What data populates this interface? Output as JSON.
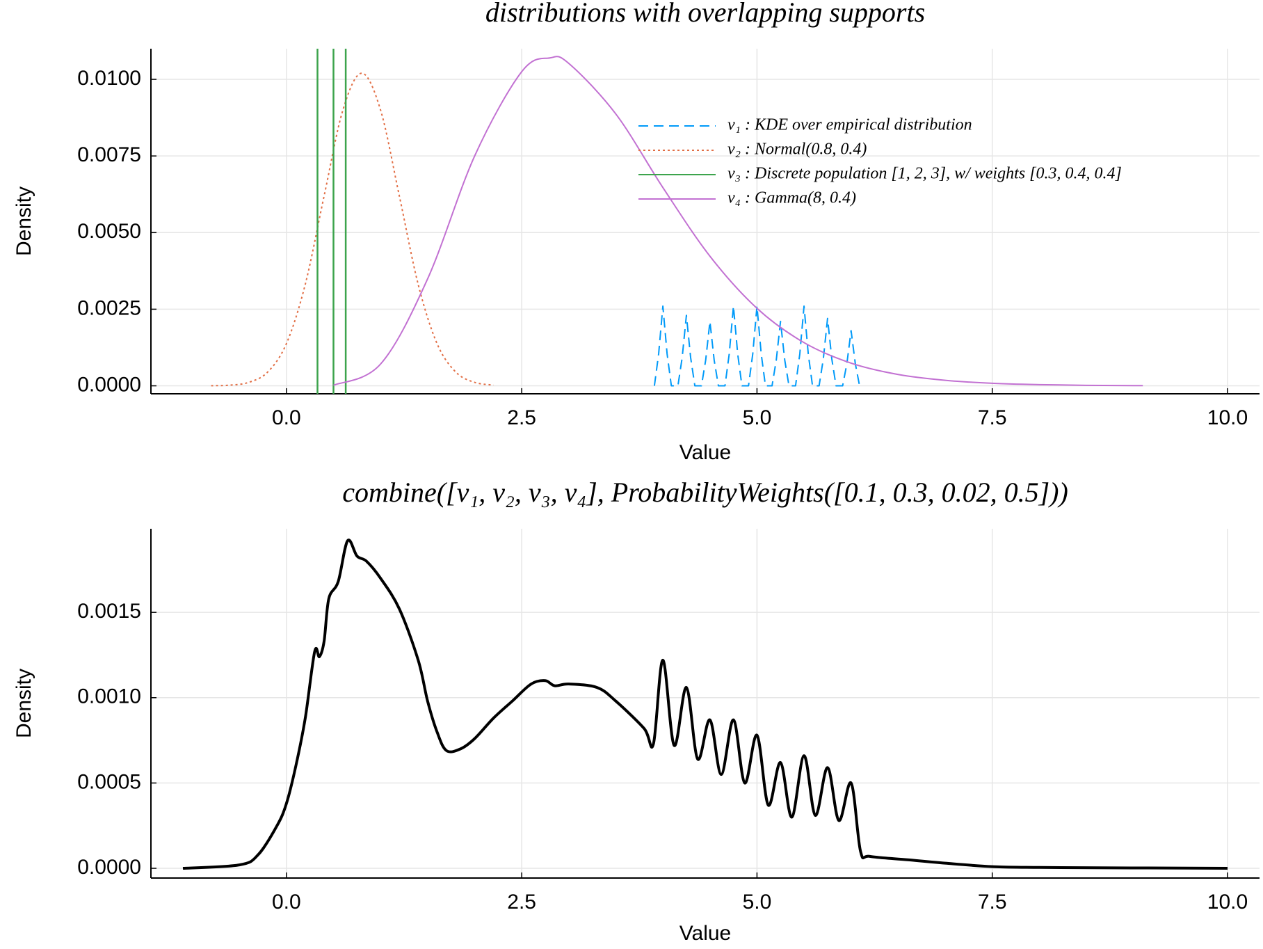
{
  "chart_data": [
    {
      "type": "line",
      "title": "distributions with overlapping supports",
      "xlabel": "Value",
      "ylabel": "Density",
      "xlim": [
        -1.44,
        10.34
      ],
      "ylim": [
        -0.00026,
        0.011
      ],
      "xticks": [
        {
          "value": 0,
          "label": "0.0"
        },
        {
          "value": 2.5,
          "label": "2.5"
        },
        {
          "value": 5,
          "label": "5.0"
        },
        {
          "value": 7.5,
          "label": "7.5"
        },
        {
          "value": 10,
          "label": "10.0"
        }
      ],
      "yticks": [
        {
          "value": 0,
          "label": "0.0000"
        },
        {
          "value": 0.0025,
          "label": "0.0025"
        },
        {
          "value": 0.005,
          "label": "0.0050"
        },
        {
          "value": 0.0075,
          "label": "0.0075"
        },
        {
          "value": 0.01,
          "label": "0.0100"
        }
      ],
      "grid": true,
      "legend": "upper right",
      "series": [
        {
          "name": "v₁ : KDE over empirical distribution",
          "color": "#009af9",
          "style": "dash",
          "x": [
            3.91,
            3.955,
            4.0,
            4.045,
            4.09,
            4.16,
            4.205,
            4.25,
            4.295,
            4.34,
            4.41,
            4.455,
            4.5,
            4.545,
            4.59,
            4.66,
            4.705,
            4.75,
            4.795,
            4.84,
            4.91,
            4.955,
            5.0,
            5.045,
            5.09,
            5.16,
            5.205,
            5.25,
            5.295,
            5.34,
            5.41,
            5.455,
            5.5,
            5.545,
            5.59,
            5.66,
            5.705,
            5.75,
            5.795,
            5.84,
            5.91,
            5.955,
            6.0,
            6.045,
            6.09
          ],
          "values": [
            0,
            0.00104,
            0.0026,
            0.00104,
            0,
            0,
            0.00092,
            0.0023,
            0.00092,
            0,
            0,
            0.00084,
            0.0021,
            0.00084,
            0,
            0,
            0.00104,
            0.0026,
            0.00104,
            0,
            0,
            0.00104,
            0.0026,
            0.00104,
            0,
            0,
            0.00084,
            0.0021,
            0.00084,
            0,
            0,
            0.00104,
            0.0026,
            0.00104,
            0,
            0,
            0.00088,
            0.0022,
            0.00088,
            0,
            0,
            0.00072,
            0.0018,
            0.00072,
            0
          ]
        },
        {
          "name": "v₂ : Normal(0.8, 0.4)",
          "color": "#e26f46",
          "style": "dot",
          "x": [
            -0.8,
            -0.6,
            -0.4,
            -0.2,
            0,
            0.2,
            0.4,
            0.6,
            0.8,
            1.0,
            1.2,
            1.4,
            1.6,
            1.8,
            2.0,
            2.2
          ],
          "values": [
            3.4e-06,
            2.23e-05,
            0.000113,
            0.000448,
            0.00138,
            0.00331,
            0.00619,
            0.009,
            0.0102,
            0.009,
            0.00619,
            0.00331,
            0.00138,
            0.000448,
            0.000113,
            2.23e-05
          ]
        },
        {
          "name": "v₃ : Discrete population [1, 2, 3], w/ weights [0.3, 0.4, 0.4]",
          "color": "#3da44d",
          "style": "vline",
          "x": [
            0.33,
            0.5,
            0.63
          ]
        },
        {
          "name": "v₄ : Gamma(8, 0.4)",
          "color": "#c271d2",
          "style": "solid",
          "x": [
            0.5,
            1.0,
            1.5,
            2.0,
            2.5,
            2.8,
            3.0,
            3.5,
            4.0,
            4.5,
            5.0,
            5.5,
            6.0,
            6.5,
            7.0,
            7.5,
            8.0,
            8.5,
            9.0,
            9.1
          ],
          "values": [
            1.95e-05,
            0.00071,
            0.00349,
            0.0075,
            0.01025,
            0.0107,
            0.01052,
            0.00887,
            0.00647,
            0.00423,
            0.00253,
            0.00141,
            0.00074,
            0.00037,
            0.00018,
            8.3e-05,
            3.8e-05,
            1.64e-05,
            7e-06,
            6e-06
          ]
        }
      ]
    },
    {
      "type": "line",
      "title": "combine([v₁, v₂, v₃, v₄], ProbabilityWeights([0.1, 0.3, 0.02, 0.5]))",
      "xlabel": "Value",
      "ylabel": "Density",
      "xlim": [
        -1.44,
        10.34
      ],
      "ylim": [
        -5.7e-05,
        0.00199
      ],
      "xticks": [
        {
          "value": 0,
          "label": "0.0"
        },
        {
          "value": 2.5,
          "label": "2.5"
        },
        {
          "value": 5,
          "label": "5.0"
        },
        {
          "value": 7.5,
          "label": "7.5"
        },
        {
          "value": 10,
          "label": "10.0"
        }
      ],
      "yticks": [
        {
          "value": 0,
          "label": "0.0000"
        },
        {
          "value": 0.0005,
          "label": "0.0005"
        },
        {
          "value": 0.001,
          "label": "0.0010"
        },
        {
          "value": 0.0015,
          "label": "0.0015"
        }
      ],
      "grid": true,
      "legend": false,
      "series": [
        {
          "color": "#000000",
          "style": "solid",
          "x": [
            -1.1,
            -0.5,
            -0.3,
            -0.1,
            0.0,
            0.1,
            0.2,
            0.3,
            0.35,
            0.4,
            0.45,
            0.55,
            0.65,
            0.75,
            0.85,
            1.0,
            1.2,
            1.4,
            1.5,
            1.6,
            1.7,
            1.85,
            2.0,
            2.2,
            2.4,
            2.6,
            2.75,
            2.85,
            3.0,
            3.3,
            3.5,
            3.8,
            3.9,
            4.0,
            4.12,
            4.25,
            4.37,
            4.5,
            4.62,
            4.75,
            4.87,
            5.0,
            5.12,
            5.25,
            5.37,
            5.5,
            5.62,
            5.75,
            5.87,
            6.0,
            6.1,
            6.2,
            6.6,
            7.0,
            7.5,
            8.0,
            10.0
          ],
          "values": [
            0,
            2e-05,
            8e-05,
            0.00025,
            0.00038,
            0.0006,
            0.00088,
            0.00127,
            0.00124,
            0.00133,
            0.00158,
            0.00168,
            0.00192,
            0.00183,
            0.0018,
            0.0017,
            0.00152,
            0.00122,
            0.00098,
            0.0008,
            0.00069,
            0.0007,
            0.00076,
            0.00088,
            0.00098,
            0.00108,
            0.0011,
            0.00107,
            0.00108,
            0.00106,
            0.00098,
            0.00082,
            0.00073,
            0.00122,
            0.00072,
            0.00106,
            0.00064,
            0.00087,
            0.00055,
            0.00087,
            0.0005,
            0.00078,
            0.00037,
            0.00062,
            0.0003,
            0.00066,
            0.00031,
            0.00059,
            0.00028,
            0.0005,
            0.0001,
            7e-05,
            5e-05,
            3e-05,
            1e-05,
            5e-06,
            0
          ]
        }
      ]
    }
  ]
}
